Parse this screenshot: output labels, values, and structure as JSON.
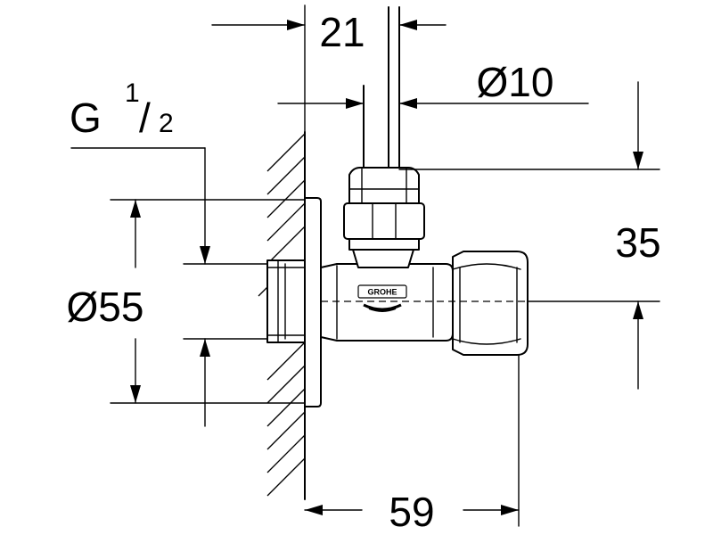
{
  "dimensions": {
    "top_width": "21",
    "pipe_diameter": "Ø10",
    "thread_prefix": "G",
    "thread_numerator": "1",
    "thread_slash": "/",
    "thread_denominator": "2",
    "rosette_diameter": "Ø55",
    "height": "35",
    "depth": "59"
  },
  "brand": {
    "logo_text": "GROHE"
  }
}
